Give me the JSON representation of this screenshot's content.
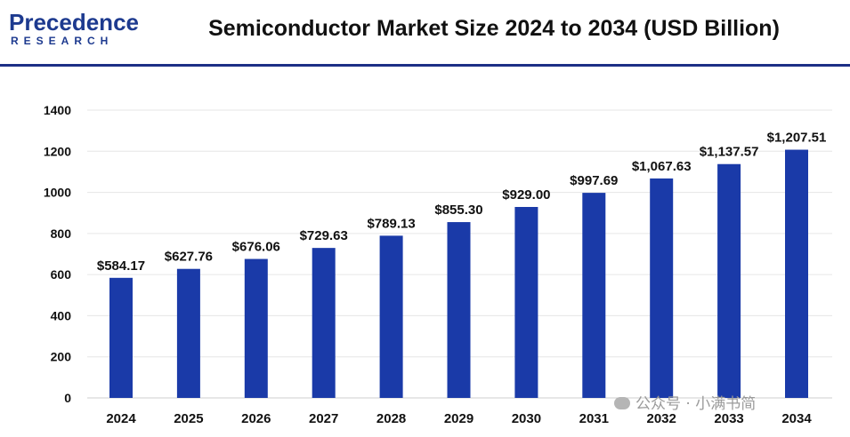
{
  "header": {
    "logo_main": "Precedence",
    "logo_sub": "RESEARCH",
    "brand_color": "#1d3a8f"
  },
  "chart_data": {
    "type": "bar",
    "title": "Semiconductor Market Size 2024 to 2034 (USD Billion)",
    "categories": [
      "2024",
      "2025",
      "2026",
      "2027",
      "2028",
      "2029",
      "2030",
      "2031",
      "2032",
      "2033",
      "2034"
    ],
    "values": [
      584.17,
      627.76,
      676.06,
      729.63,
      789.13,
      855.3,
      929.0,
      997.69,
      1067.63,
      1137.57,
      1207.51
    ],
    "data_labels": [
      "$584.17",
      "$627.76",
      "$676.06",
      "$729.63",
      "$789.13",
      "$855.30",
      "$929.00",
      "$997.69",
      "$1,067.63",
      "$1,137.57",
      "$1,207.51"
    ],
    "ylim": [
      0,
      1400
    ],
    "yticks": [
      0,
      200,
      400,
      600,
      800,
      1000,
      1200,
      1400
    ],
    "grid": true,
    "bar_color": "#1a3aa8",
    "xlabel": "",
    "ylabel": ""
  },
  "watermark": "公众号 · 小满书简"
}
